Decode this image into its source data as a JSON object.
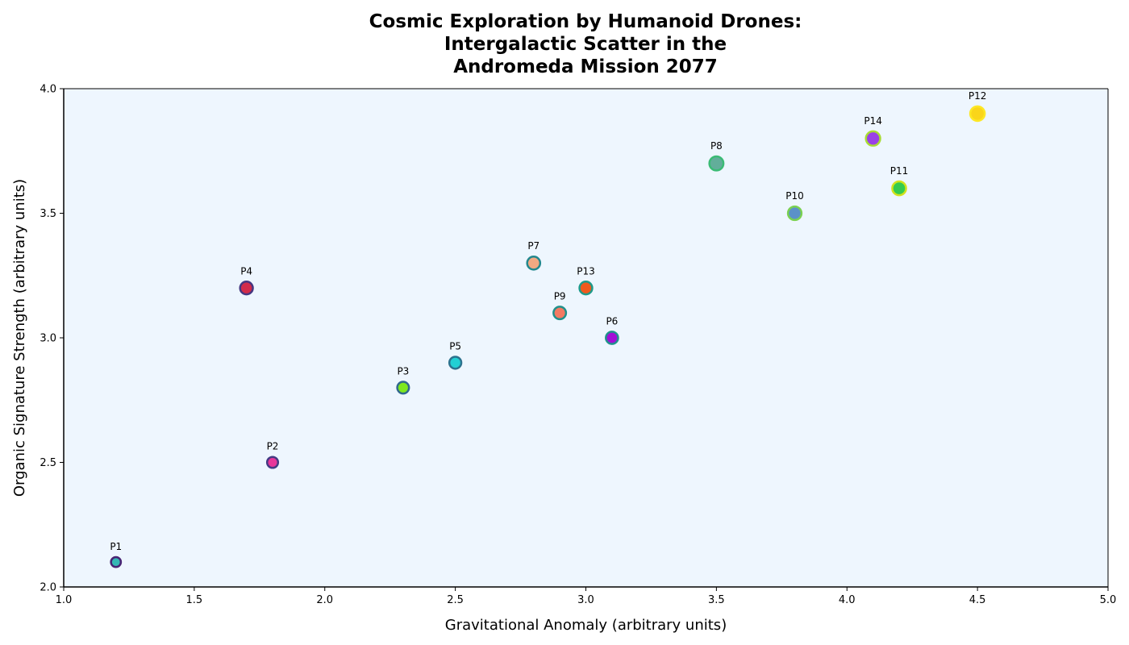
{
  "chart_data": {
    "type": "scatter",
    "title_lines": [
      "Cosmic Exploration by Humanoid Drones:",
      "Intergalactic Scatter in the",
      "Andromeda Mission 2077"
    ],
    "xlabel": "Gravitational Anomaly (arbitrary units)",
    "ylabel": "Organic Signature Strength (arbitrary units)",
    "xlim": [
      1.0,
      5.0
    ],
    "ylim": [
      2.0,
      4.0
    ],
    "xticks": [
      "1.0",
      "1.5",
      "2.0",
      "2.5",
      "3.0",
      "3.5",
      "4.0",
      "4.5",
      "5.0"
    ],
    "yticks": [
      "2.0",
      "2.5",
      "3.0",
      "3.5",
      "4.0"
    ],
    "plot_background": "#eef6fe",
    "points": [
      {
        "label": "P1",
        "x": 1.2,
        "y": 2.1,
        "fill": "#35b7b4",
        "edge": "#482474"
      },
      {
        "label": "P2",
        "x": 1.8,
        "y": 2.5,
        "fill": "#e8369a",
        "edge": "#443b84"
      },
      {
        "label": "P3",
        "x": 2.3,
        "y": 2.8,
        "fill": "#7ee81e",
        "edge": "#31688e"
      },
      {
        "label": "P4",
        "x": 1.7,
        "y": 3.2,
        "fill": "#d22b4b",
        "edge": "#453781"
      },
      {
        "label": "P5",
        "x": 2.5,
        "y": 2.9,
        "fill": "#22d0d4",
        "edge": "#2c728e"
      },
      {
        "label": "P6",
        "x": 3.1,
        "y": 3.0,
        "fill": "#a20fd6",
        "edge": "#20928c"
      },
      {
        "label": "P7",
        "x": 2.8,
        "y": 3.3,
        "fill": "#f2a982",
        "edge": "#23888e"
      },
      {
        "label": "P8",
        "x": 3.5,
        "y": 3.7,
        "fill": "#62ae9a",
        "edge": "#3bbb75"
      },
      {
        "label": "P9",
        "x": 2.9,
        "y": 3.1,
        "fill": "#f47a62",
        "edge": "#21918c"
      },
      {
        "label": "P10",
        "x": 3.8,
        "y": 3.5,
        "fill": "#5b91c8",
        "edge": "#7ad151"
      },
      {
        "label": "P11",
        "x": 4.2,
        "y": 3.6,
        "fill": "#34cb4e",
        "edge": "#d2e21b"
      },
      {
        "label": "P12",
        "x": 4.5,
        "y": 3.9,
        "fill": "#fad51a",
        "edge": "#fde725"
      },
      {
        "label": "P13",
        "x": 3.0,
        "y": 3.2,
        "fill": "#f05a1e",
        "edge": "#1f9a8a"
      },
      {
        "label": "P14",
        "x": 4.1,
        "y": 3.8,
        "fill": "#9a40e6",
        "edge": "#a8db34"
      }
    ]
  }
}
